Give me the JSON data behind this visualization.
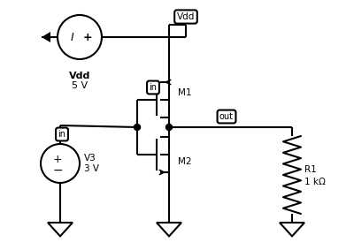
{
  "bg_color": "#ffffff",
  "line_color": "#000000",
  "line_width": 1.5,
  "vdd_label": "Vdd",
  "vdd_voltage": "5 V",
  "v3_label": "V3",
  "v3_voltage": "3 V",
  "m1_label": "M1",
  "m2_label": "M2",
  "r1_label": "R1",
  "r1_value": "1 kΩ",
  "in_label": "in",
  "out_label": "out"
}
